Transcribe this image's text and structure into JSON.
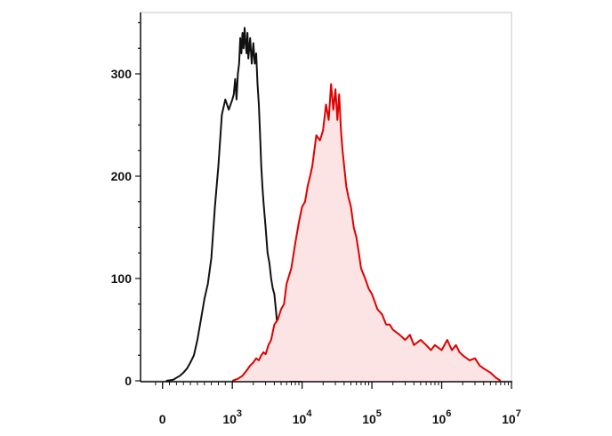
{
  "chart_data": {
    "type": "area",
    "title": "",
    "xlabel": "",
    "ylabel": "",
    "x_scale": "biexponential",
    "xlim": [
      -100,
      10000000
    ],
    "ylim": [
      0,
      360
    ],
    "yticks": [
      {
        "value": 0,
        "label": "0"
      },
      {
        "value": 100,
        "label": "100"
      },
      {
        "value": 200,
        "label": "200"
      },
      {
        "value": 300,
        "label": "300"
      }
    ],
    "xticks": [
      {
        "value": 0,
        "label": "0",
        "sup": ""
      },
      {
        "value": 1000,
        "label": "10",
        "sup": "3"
      },
      {
        "value": 10000,
        "label": "10",
        "sup": "4"
      },
      {
        "value": 100000,
        "label": "10",
        "sup": "5"
      },
      {
        "value": 1000000,
        "label": "10",
        "sup": "6"
      },
      {
        "value": 10000000,
        "label": "10",
        "sup": "7"
      }
    ],
    "grid": false,
    "legend": "none",
    "series": [
      {
        "color": "#111111",
        "fill": "none",
        "x": [
          50,
          150,
          250,
          300,
          350,
          400,
          450,
          500,
          550,
          600,
          650,
          700,
          750,
          800,
          850,
          900,
          950,
          1000,
          1050,
          1100,
          1150,
          1200,
          1250,
          1300,
          1350,
          1400,
          1450,
          1500,
          1550,
          1600,
          1650,
          1700,
          1800,
          1900,
          2000,
          2100,
          2200,
          2300,
          2400,
          2500,
          2600,
          2700,
          2800,
          3000,
          3200,
          3400,
          3600,
          3800,
          4000,
          4200,
          4400,
          4600,
          4800,
          5000,
          5500,
          6000,
          6500,
          7000,
          8000,
          9000,
          10000
        ],
        "y": [
          0,
          1,
          5,
          8,
          12,
          18,
          25,
          40,
          60,
          80,
          95,
          120,
          170,
          210,
          260,
          275,
          265,
          275,
          280,
          295,
          275,
          300,
          310,
          335,
          320,
          340,
          325,
          345,
          330,
          320,
          340,
          315,
          335,
          310,
          330,
          310,
          320,
          290,
          270,
          240,
          210,
          190,
          175,
          150,
          125,
          115,
          100,
          90,
          85,
          70,
          55,
          40,
          25,
          15,
          6,
          2,
          1,
          0,
          0,
          0,
          0
        ]
      },
      {
        "color": "#e00000",
        "fill": "#fde4e4",
        "x": [
          1000,
          1200,
          1400,
          1600,
          1800,
          2000,
          2200,
          2400,
          2600,
          2800,
          3000,
          3300,
          3600,
          4000,
          4500,
          5000,
          5500,
          6000,
          7000,
          8000,
          9000,
          10000,
          11000,
          12000,
          13000,
          14000,
          16000,
          18000,
          20000,
          22000,
          24000,
          26000,
          28000,
          30000,
          32000,
          34000,
          36000,
          38000,
          40000,
          43000,
          46000,
          50000,
          55000,
          60000,
          65000,
          70000,
          80000,
          90000,
          100000,
          120000,
          140000,
          160000,
          180000,
          200000,
          250000,
          300000,
          350000,
          400000,
          500000,
          600000,
          700000,
          800000,
          1000000,
          1200000,
          1400000,
          1600000,
          1800000,
          2000000,
          2500000,
          3000000,
          3500000,
          4000000,
          5000000,
          6000000,
          7000000
        ],
        "y": [
          0,
          2,
          5,
          10,
          15,
          18,
          22,
          20,
          25,
          28,
          26,
          35,
          40,
          55,
          60,
          70,
          75,
          95,
          110,
          135,
          155,
          170,
          175,
          190,
          200,
          210,
          240,
          235,
          245,
          270,
          255,
          290,
          265,
          285,
          255,
          280,
          245,
          225,
          210,
          190,
          180,
          170,
          150,
          140,
          125,
          110,
          100,
          90,
          85,
          70,
          65,
          55,
          55,
          50,
          45,
          40,
          45,
          35,
          40,
          35,
          30,
          35,
          30,
          40,
          30,
          35,
          28,
          25,
          20,
          22,
          15,
          12,
          8,
          3,
          0
        ]
      }
    ]
  }
}
